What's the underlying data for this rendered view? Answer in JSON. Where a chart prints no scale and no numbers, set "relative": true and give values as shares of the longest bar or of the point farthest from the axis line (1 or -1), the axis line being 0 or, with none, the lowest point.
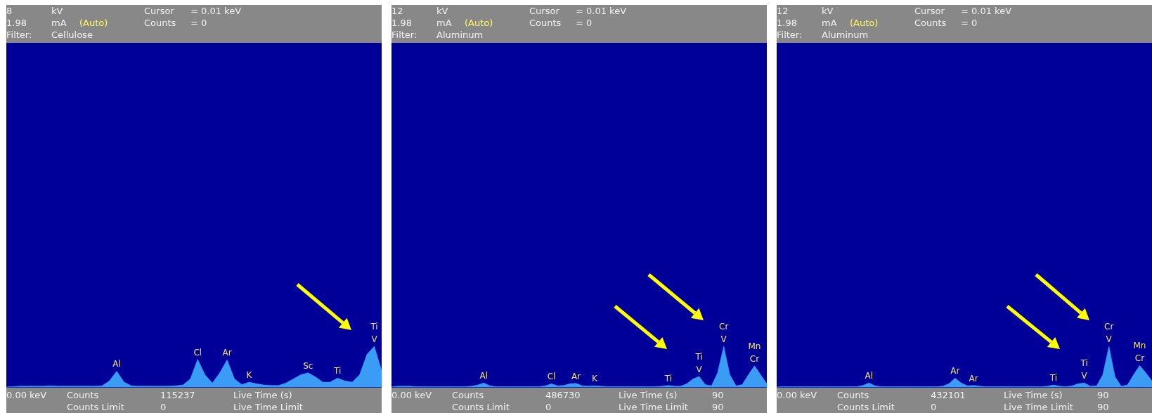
{
  "chart_data": [
    {
      "type": "area",
      "relative": true,
      "categories": [
        null,
        null,
        null,
        null,
        null,
        null,
        null,
        null,
        null,
        null,
        null,
        null,
        null,
        null,
        null,
        null,
        null,
        null,
        null,
        null,
        null,
        null,
        null,
        null,
        null,
        null,
        null,
        null,
        null,
        null,
        null,
        null,
        null,
        null,
        null,
        null,
        null,
        null,
        null,
        null,
        null,
        null,
        null,
        null,
        null,
        null,
        null,
        null,
        null,
        null,
        null,
        null
      ],
      "series": [
        {
          "color": "#3a9cf5",
          "values": [
            0,
            0.01,
            0.02,
            0.02,
            0.02,
            0.02,
            0.03,
            0.02,
            0.02,
            0.02,
            0.02,
            0.02,
            0.02,
            0.03,
            0.15,
            0.39,
            0.12,
            0.03,
            0.02,
            0.02,
            0.02,
            0.02,
            0.02,
            0.03,
            0.05,
            0.2,
            0.68,
            0.3,
            0.1,
            0.35,
            0.67,
            0.2,
            0.06,
            0.12,
            0.08,
            0.05,
            0.04,
            0.04,
            0.1,
            0.2,
            0.3,
            0.35,
            0.25,
            0.12,
            0.12,
            0.22,
            0.15,
            0.12,
            0.3,
            0.8,
            1,
            0.4
          ]
        }
      ],
      "annotations": [
        "8",
        "kV",
        "Cursor",
        "= 0.01 keV",
        "1.98",
        "mA",
        "(Auto)",
        "Counts",
        "= 0",
        "Filter:",
        "Cellulose",
        "0.00 keV",
        "Counts",
        "115237",
        "Live Time (s)",
        "Counts Limit",
        "0",
        "Live Time Limit",
        "Al",
        "Cl",
        "Ar",
        "K",
        "Sc",
        "Ti",
        "Ti\nV"
      ]
    },
    {
      "type": "area",
      "relative": true,
      "categories": [
        null,
        null,
        null,
        null,
        null,
        null,
        null,
        null,
        null,
        null,
        null,
        null,
        null,
        null,
        null,
        null,
        null,
        null,
        null,
        null,
        null,
        null,
        null,
        null,
        null,
        null,
        null,
        null,
        null,
        null,
        null,
        null,
        null,
        null,
        null,
        null,
        null,
        null,
        null,
        null,
        null,
        null,
        null,
        null,
        null,
        null,
        null,
        null,
        null,
        null,
        null,
        null,
        null,
        null,
        null,
        null,
        null,
        null,
        null,
        null,
        null,
        null
      ],
      "series": [
        {
          "color": "#3a9cf5",
          "values": [
            0,
            0.02,
            0.02,
            0.02,
            0.01,
            0.01,
            0.01,
            0.01,
            0.01,
            0.01,
            0.01,
            0.01,
            0.01,
            0.02,
            0.05,
            0.1,
            0.03,
            0.01,
            0.01,
            0.01,
            0.01,
            0.01,
            0.01,
            0.01,
            0.01,
            0.03,
            0.08,
            0.03,
            0.04,
            0.08,
            0.09,
            0.03,
            0.02,
            0.03,
            0.02,
            0.01,
            0.01,
            0.01,
            0.01,
            0.01,
            0.01,
            0.01,
            0.01,
            0.01,
            0.02,
            0.04,
            0.02,
            0.02,
            0.08,
            0.2,
            0.26,
            0.06,
            0.03,
            0.35,
            1,
            0.3,
            0.03,
            0.06,
            0.3,
            0.52,
            0.3,
            0.08
          ]
        }
      ],
      "annotations": [
        "12",
        "kV",
        "Cursor",
        "= 0.01 keV",
        "1.98",
        "mA",
        "(Auto)",
        "Counts",
        "= 0",
        "Filter:",
        "Aluminum",
        "0.00 keV",
        "Counts",
        "486730",
        "Live Time (s)",
        "Counts Limit",
        "0",
        "Live Time Limit",
        "90",
        "90",
        "Al",
        "Cl",
        "Ar",
        "K",
        "Ti",
        "Ti\nV",
        "Cr\nV",
        "Mn\nCr"
      ]
    },
    {
      "type": "area",
      "relative": true,
      "categories": [
        null,
        null,
        null,
        null,
        null,
        null,
        null,
        null,
        null,
        null,
        null,
        null,
        null,
        null,
        null,
        null,
        null,
        null,
        null,
        null,
        null,
        null,
        null,
        null,
        null,
        null,
        null,
        null,
        null,
        null,
        null,
        null,
        null,
        null,
        null,
        null,
        null,
        null,
        null,
        null,
        null,
        null,
        null,
        null,
        null,
        null,
        null,
        null,
        null,
        null,
        null,
        null,
        null,
        null,
        null,
        null,
        null,
        null,
        null,
        null,
        null,
        null
      ],
      "series": [
        {
          "color": "#3a9cf5",
          "values": [
            0,
            0.01,
            0.01,
            0.01,
            0.01,
            0.01,
            0.01,
            0.01,
            0.01,
            0.01,
            0.01,
            0.01,
            0.01,
            0.01,
            0.04,
            0.1,
            0.03,
            0.01,
            0.01,
            0.01,
            0.01,
            0.01,
            0.01,
            0.01,
            0.01,
            0.01,
            0.01,
            0.02,
            0.08,
            0.22,
            0.1,
            0.03,
            0.04,
            0.02,
            0.01,
            0.01,
            0.01,
            0.01,
            0.01,
            0.01,
            0.01,
            0.01,
            0.01,
            0.01,
            0.02,
            0.05,
            0.02,
            0.01,
            0.03,
            0.08,
            0.1,
            0.02,
            0.03,
            0.3,
            1,
            0.25,
            0.02,
            0.05,
            0.3,
            0.53,
            0.35,
            0.15
          ]
        }
      ],
      "annotations": [
        "12",
        "kV",
        "Cursor",
        "= 0.01 keV",
        "1.98",
        "mA",
        "(Auto)",
        "Counts",
        "= 0",
        "Filter:",
        "Aluminum",
        "0.00 keV",
        "Counts",
        "432101",
        "Live Time (s)",
        "Counts Limit",
        "0",
        "Live Time Limit",
        "90",
        "90",
        "Al",
        "Ar",
        "Ar",
        "Ti",
        "Ti\nV",
        "Cr\nV",
        "Mn\nCr"
      ]
    }
  ]
}
